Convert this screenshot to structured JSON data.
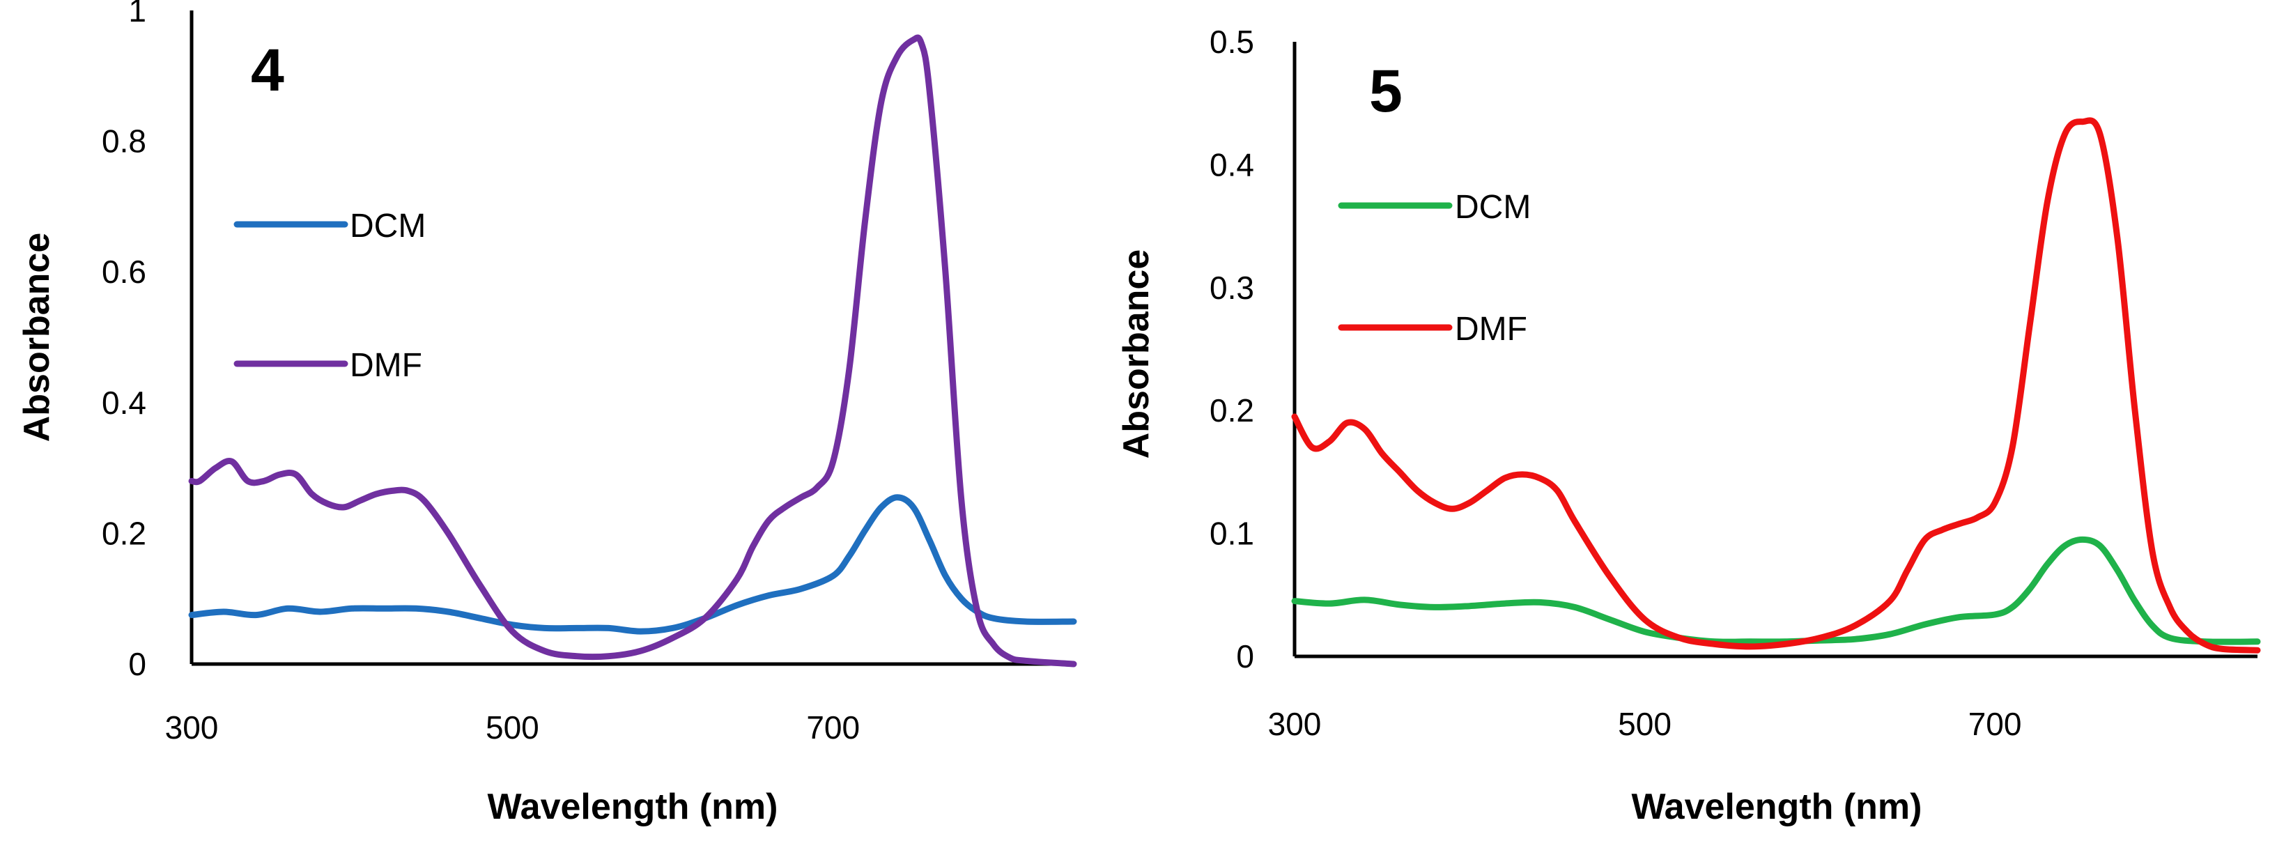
{
  "chart_data": [
    {
      "type": "line",
      "panel_label": "4",
      "xlabel": "Wavelength (nm)",
      "ylabel": "Absorbance",
      "xlim": [
        300,
        850
      ],
      "ylim": [
        0,
        1
      ],
      "xticks": [
        300,
        500,
        700
      ],
      "yticks": [
        {
          "value": 0,
          "label": "0"
        },
        {
          "value": 0.2,
          "label": "0.2"
        },
        {
          "value": 0.4,
          "label": "0.4"
        },
        {
          "value": 0.6,
          "label": "0.6"
        },
        {
          "value": 0.8,
          "label": "0.8"
        },
        {
          "value": 1,
          "label": "1"
        }
      ],
      "grid": false,
      "legend_position": "left",
      "series": [
        {
          "name": "DCM",
          "color": "#1f6fbf",
          "x": [
            300,
            320,
            340,
            360,
            380,
            400,
            420,
            440,
            460,
            480,
            500,
            520,
            540,
            560,
            580,
            600,
            620,
            640,
            660,
            680,
            700,
            710,
            720,
            730,
            740,
            750,
            760,
            770,
            780,
            790,
            800,
            820,
            850
          ],
          "y": [
            0.075,
            0.08,
            0.075,
            0.085,
            0.08,
            0.085,
            0.085,
            0.085,
            0.08,
            0.07,
            0.06,
            0.055,
            0.055,
            0.055,
            0.05,
            0.055,
            0.07,
            0.09,
            0.105,
            0.115,
            0.135,
            0.165,
            0.205,
            0.24,
            0.255,
            0.24,
            0.19,
            0.135,
            0.1,
            0.08,
            0.07,
            0.065,
            0.065
          ]
        },
        {
          "name": "DMF",
          "color": "#7030a0",
          "x": [
            300,
            305,
            315,
            325,
            335,
            345,
            355,
            365,
            375,
            385,
            395,
            405,
            415,
            425,
            435,
            445,
            460,
            480,
            500,
            520,
            540,
            560,
            580,
            600,
            620,
            640,
            650,
            660,
            670,
            680,
            690,
            700,
            710,
            720,
            730,
            740,
            750,
            755,
            760,
            770,
            780,
            790,
            800,
            810,
            820,
            850
          ],
          "y": [
            0.28,
            0.28,
            0.3,
            0.31,
            0.28,
            0.28,
            0.29,
            0.29,
            0.26,
            0.245,
            0.24,
            0.25,
            0.26,
            0.265,
            0.265,
            0.25,
            0.2,
            0.12,
            0.05,
            0.02,
            0.012,
            0.012,
            0.02,
            0.04,
            0.07,
            0.13,
            0.18,
            0.22,
            0.24,
            0.255,
            0.27,
            0.31,
            0.45,
            0.68,
            0.86,
            0.93,
            0.955,
            0.95,
            0.88,
            0.6,
            0.25,
            0.08,
            0.03,
            0.01,
            0.005,
            0.0
          ]
        }
      ]
    },
    {
      "type": "line",
      "panel_label": "5",
      "xlabel": "Wavelength (nm)",
      "ylabel": "Absorbance",
      "xlim": [
        300,
        850
      ],
      "ylim": [
        0,
        0.5
      ],
      "xticks": [
        300,
        500,
        700
      ],
      "yticks": [
        {
          "value": 0,
          "label": "0"
        },
        {
          "value": 0.1,
          "label": "0.1"
        },
        {
          "value": 0.2,
          "label": "0.2"
        },
        {
          "value": 0.3,
          "label": "0.3"
        },
        {
          "value": 0.4,
          "label": "0.4"
        },
        {
          "value": 0.5,
          "label": "0.5"
        }
      ],
      "grid": false,
      "legend_position": "left",
      "series": [
        {
          "name": "DCM",
          "color": "#1fb24a",
          "x": [
            300,
            320,
            340,
            360,
            380,
            400,
            420,
            440,
            460,
            480,
            500,
            520,
            540,
            560,
            580,
            600,
            620,
            640,
            660,
            680,
            700,
            710,
            720,
            730,
            740,
            750,
            760,
            770,
            780,
            790,
            800,
            820,
            850
          ],
          "y": [
            0.045,
            0.043,
            0.046,
            0.042,
            0.04,
            0.041,
            0.043,
            0.044,
            0.04,
            0.03,
            0.02,
            0.015,
            0.012,
            0.012,
            0.012,
            0.013,
            0.014,
            0.018,
            0.026,
            0.032,
            0.034,
            0.04,
            0.055,
            0.075,
            0.09,
            0.095,
            0.09,
            0.07,
            0.045,
            0.025,
            0.015,
            0.012,
            0.012
          ]
        },
        {
          "name": "DMF",
          "color": "#ee1111",
          "x": [
            300,
            310,
            320,
            330,
            340,
            350,
            360,
            370,
            380,
            390,
            400,
            410,
            420,
            430,
            440,
            450,
            460,
            480,
            500,
            520,
            540,
            560,
            580,
            600,
            620,
            640,
            650,
            660,
            670,
            680,
            690,
            700,
            710,
            720,
            730,
            740,
            750,
            760,
            770,
            780,
            790,
            800,
            810,
            820,
            830,
            850
          ],
          "y": [
            0.195,
            0.17,
            0.175,
            0.19,
            0.185,
            0.165,
            0.15,
            0.135,
            0.125,
            0.12,
            0.125,
            0.135,
            0.145,
            0.148,
            0.145,
            0.135,
            0.11,
            0.065,
            0.03,
            0.015,
            0.01,
            0.008,
            0.01,
            0.015,
            0.025,
            0.045,
            0.07,
            0.095,
            0.103,
            0.108,
            0.113,
            0.125,
            0.17,
            0.27,
            0.37,
            0.425,
            0.435,
            0.425,
            0.34,
            0.2,
            0.085,
            0.04,
            0.02,
            0.01,
            0.006,
            0.005
          ]
        }
      ]
    }
  ]
}
